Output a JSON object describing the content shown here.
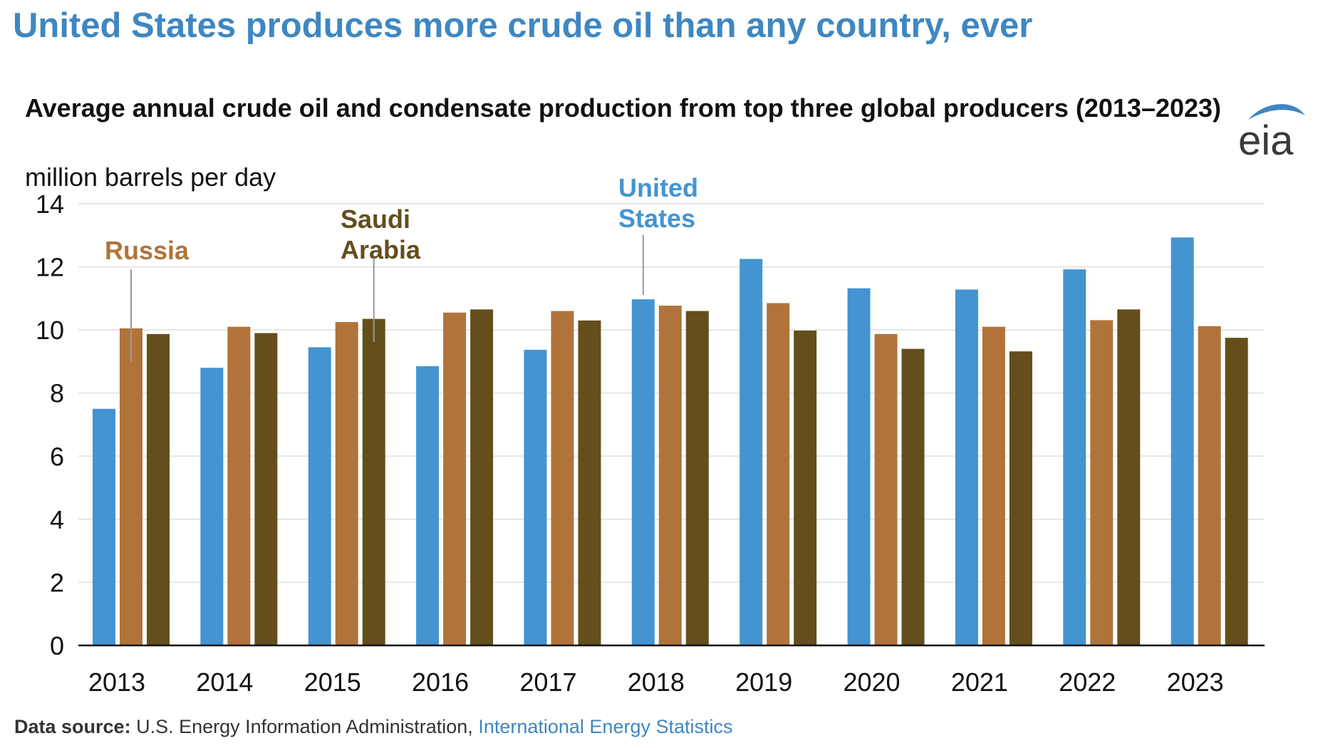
{
  "headline": "United States produces more crude oil than any country, ever",
  "logo": {
    "text": "eia",
    "icon": "eia-swoosh-logo"
  },
  "source": {
    "label": "Data source:",
    "text": "U.S. Energy Information Administration,",
    "link": "International Energy Statistics"
  },
  "colors": {
    "united_states": "#4394d1",
    "russia": "#b0743a",
    "saudi_arabia": "#634e1c",
    "headline": "#3e87c2",
    "grid": "#e6e6e6"
  },
  "chart_data": {
    "type": "bar",
    "title": "Average annual crude oil and condensate production from top three global producers (2013–2023)",
    "ylabel": "million barrels per day",
    "xlabel": "",
    "ylim": [
      0,
      14
    ],
    "yticks": [
      0,
      2,
      4,
      6,
      8,
      10,
      12,
      14
    ],
    "grid": true,
    "legend": "direct labels",
    "categories": [
      "2013",
      "2014",
      "2015",
      "2016",
      "2017",
      "2018",
      "2019",
      "2020",
      "2021",
      "2022",
      "2023"
    ],
    "series": [
      {
        "name": "United States",
        "color": "#4394d1",
        "values": [
          7.5,
          8.8,
          9.45,
          8.85,
          9.37,
          10.97,
          12.25,
          11.32,
          11.28,
          11.92,
          12.93
        ]
      },
      {
        "name": "Russia",
        "color": "#b0743a",
        "values": [
          10.05,
          10.1,
          10.25,
          10.55,
          10.6,
          10.77,
          10.85,
          9.87,
          10.1,
          10.31,
          10.12
        ]
      },
      {
        "name": "Saudi Arabia",
        "color": "#634e1c",
        "values": [
          9.87,
          9.9,
          10.35,
          10.65,
          10.3,
          10.6,
          9.98,
          9.4,
          9.32,
          10.65,
          9.75
        ]
      }
    ],
    "annotations": [
      {
        "series": "Russia",
        "text": "Russia"
      },
      {
        "series": "Saudi Arabia",
        "text": "Saudi Arabia",
        "lines": [
          "Saudi",
          "Arabia"
        ]
      },
      {
        "series": "United States",
        "text": "United States",
        "lines": [
          "United",
          "States"
        ]
      }
    ]
  }
}
